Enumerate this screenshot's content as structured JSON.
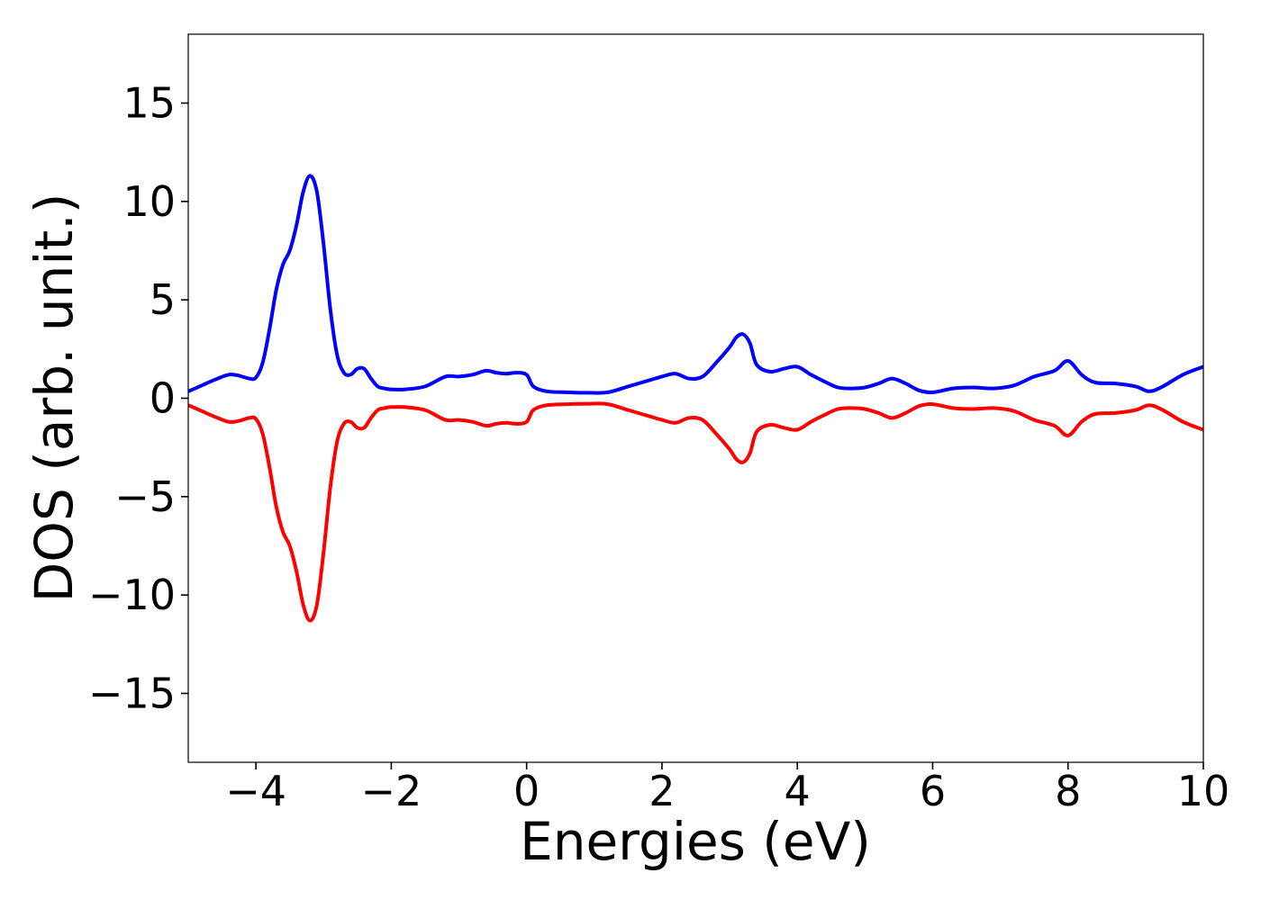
{
  "chart_data": {
    "type": "line",
    "title": "",
    "xlabel": "Energies (eV)",
    "ylabel": "DOS (arb. unit.)",
    "xlim": [
      -5,
      10
    ],
    "ylim": [
      -18.5,
      18.5
    ],
    "xticks": [
      -4,
      -2,
      0,
      2,
      4,
      6,
      8,
      10
    ],
    "xtick_labels": [
      "−4",
      "−2",
      "0",
      "2",
      "4",
      "6",
      "8",
      "10"
    ],
    "yticks": [
      -15,
      -10,
      -5,
      0,
      5,
      10,
      15
    ],
    "ytick_labels": [
      "−15",
      "−10",
      "−5",
      "0",
      "5",
      "10",
      "15"
    ],
    "grid": false,
    "legend": null,
    "series": [
      {
        "color": "#0000ff",
        "x": [
          -5.0,
          -4.8,
          -4.6,
          -4.4,
          -4.25,
          -4.1,
          -4.0,
          -3.9,
          -3.8,
          -3.7,
          -3.6,
          -3.5,
          -3.4,
          -3.3,
          -3.2,
          -3.1,
          -3.0,
          -2.9,
          -2.8,
          -2.7,
          -2.6,
          -2.5,
          -2.4,
          -2.3,
          -2.2,
          -2.1,
          -2.0,
          -1.8,
          -1.5,
          -1.2,
          -1.0,
          -0.8,
          -0.6,
          -0.45,
          -0.3,
          -0.15,
          0.0,
          0.1,
          0.3,
          0.6,
          0.9,
          1.2,
          1.5,
          1.8,
          2.0,
          2.2,
          2.4,
          2.6,
          2.8,
          3.0,
          3.1,
          3.2,
          3.3,
          3.4,
          3.6,
          3.8,
          4.0,
          4.2,
          4.4,
          4.6,
          4.8,
          5.0,
          5.2,
          5.4,
          5.6,
          5.8,
          6.0,
          6.3,
          6.6,
          6.9,
          7.2,
          7.5,
          7.8,
          8.0,
          8.2,
          8.4,
          8.7,
          9.0,
          9.2,
          9.4,
          9.7,
          10.0
        ],
        "y": [
          0.35,
          0.65,
          0.95,
          1.2,
          1.15,
          1.0,
          1.05,
          1.8,
          3.5,
          5.5,
          6.8,
          7.5,
          8.8,
          10.5,
          11.3,
          10.5,
          7.8,
          4.5,
          2.2,
          1.3,
          1.2,
          1.5,
          1.5,
          1.0,
          0.6,
          0.5,
          0.45,
          0.45,
          0.6,
          1.1,
          1.1,
          1.2,
          1.4,
          1.3,
          1.25,
          1.3,
          1.2,
          0.6,
          0.35,
          0.3,
          0.28,
          0.3,
          0.6,
          0.9,
          1.1,
          1.25,
          1.0,
          1.1,
          1.8,
          2.6,
          3.1,
          3.25,
          2.8,
          1.7,
          1.35,
          1.5,
          1.6,
          1.2,
          0.85,
          0.55,
          0.5,
          0.55,
          0.75,
          1.0,
          0.75,
          0.4,
          0.3,
          0.5,
          0.55,
          0.5,
          0.65,
          1.1,
          1.4,
          1.9,
          1.2,
          0.8,
          0.75,
          0.6,
          0.35,
          0.6,
          1.2,
          1.6
        ]
      },
      {
        "color": "#ff0000",
        "x": [
          -5.0,
          -4.8,
          -4.6,
          -4.4,
          -4.25,
          -4.1,
          -4.0,
          -3.9,
          -3.8,
          -3.7,
          -3.6,
          -3.5,
          -3.4,
          -3.3,
          -3.2,
          -3.1,
          -3.0,
          -2.9,
          -2.8,
          -2.7,
          -2.6,
          -2.5,
          -2.4,
          -2.3,
          -2.2,
          -2.1,
          -2.0,
          -1.8,
          -1.5,
          -1.2,
          -1.0,
          -0.8,
          -0.6,
          -0.45,
          -0.3,
          -0.15,
          0.0,
          0.1,
          0.3,
          0.6,
          0.9,
          1.2,
          1.5,
          1.8,
          2.0,
          2.2,
          2.4,
          2.6,
          2.8,
          3.0,
          3.1,
          3.2,
          3.3,
          3.4,
          3.6,
          3.8,
          4.0,
          4.2,
          4.4,
          4.6,
          4.8,
          5.0,
          5.2,
          5.4,
          5.6,
          5.8,
          6.0,
          6.3,
          6.6,
          6.9,
          7.2,
          7.5,
          7.8,
          8.0,
          8.2,
          8.4,
          8.7,
          9.0,
          9.2,
          9.4,
          9.7,
          10.0
        ],
        "y": [
          -0.35,
          -0.65,
          -0.95,
          -1.2,
          -1.15,
          -1.0,
          -1.05,
          -1.8,
          -3.5,
          -5.5,
          -6.8,
          -7.5,
          -8.8,
          -10.5,
          -11.3,
          -10.5,
          -7.8,
          -4.5,
          -2.2,
          -1.3,
          -1.2,
          -1.5,
          -1.5,
          -1.0,
          -0.6,
          -0.5,
          -0.45,
          -0.45,
          -0.6,
          -1.1,
          -1.1,
          -1.2,
          -1.4,
          -1.3,
          -1.25,
          -1.3,
          -1.2,
          -0.6,
          -0.35,
          -0.3,
          -0.28,
          -0.3,
          -0.6,
          -0.9,
          -1.1,
          -1.25,
          -1.0,
          -1.1,
          -1.8,
          -2.6,
          -3.1,
          -3.25,
          -2.8,
          -1.7,
          -1.35,
          -1.5,
          -1.6,
          -1.2,
          -0.85,
          -0.55,
          -0.5,
          -0.55,
          -0.75,
          -1.0,
          -0.75,
          -0.4,
          -0.3,
          -0.5,
          -0.55,
          -0.5,
          -0.65,
          -1.1,
          -1.4,
          -1.9,
          -1.2,
          -0.8,
          -0.75,
          -0.6,
          -0.35,
          -0.6,
          -1.2,
          -1.6
        ]
      }
    ]
  }
}
